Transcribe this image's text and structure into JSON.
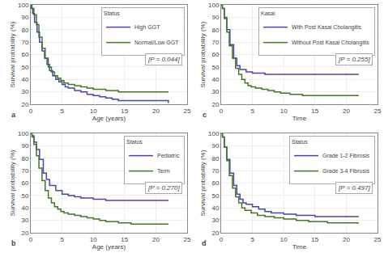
{
  "chart_data": [
    {
      "type": "step",
      "title": "a",
      "xlabel": "Age (years)",
      "ylabel": "Survival probability (%)",
      "legend_title": "Status",
      "legend": "upper right",
      "grid": true,
      "annotations": [
        "[P = 0.044]"
      ],
      "xlim": [
        0,
        25
      ],
      "ylim": [
        20,
        100
      ],
      "xticks": [
        0,
        5,
        10,
        15,
        20,
        25
      ],
      "yticks": [
        20,
        30,
        40,
        50,
        60,
        70,
        80,
        90,
        100
      ],
      "series": [
        {
          "name": "High GGT",
          "color": "#4444bb",
          "x": [
            0,
            0.1,
            0.3,
            0.6,
            1.0,
            1.4,
            1.8,
            2.2,
            2.6,
            3.0,
            3.5,
            4.0,
            4.5,
            5.0,
            5.5,
            6.0,
            7.0,
            8.0,
            9.0,
            10.0,
            11.0,
            12.0,
            13.0,
            14.0,
            22.0
          ],
          "values": [
            100,
            97,
            93,
            86,
            78,
            70,
            63,
            57,
            52,
            47,
            43,
            40,
            38,
            36,
            34,
            33,
            31,
            30,
            28,
            27,
            26,
            25,
            24,
            23,
            21
          ]
        },
        {
          "name": "Normal/Low GGT",
          "color": "#447722",
          "x": [
            0,
            0.2,
            0.5,
            0.9,
            1.3,
            1.8,
            2.3,
            2.8,
            3.3,
            3.8,
            4.3,
            4.8,
            5.3,
            6.0,
            7.0,
            8.0,
            9.0,
            10.0,
            12.0,
            14.0,
            22.0
          ],
          "values": [
            100,
            97,
            92,
            84,
            74,
            65,
            57,
            50,
            46,
            43,
            41,
            39,
            37,
            36,
            35,
            34,
            33,
            32,
            31,
            30,
            30
          ]
        }
      ]
    },
    {
      "type": "step",
      "title": "b",
      "xlabel": "Age (years)",
      "ylabel": "Survival probability (%)",
      "legend_title": "Status",
      "legend": "upper right",
      "grid": true,
      "annotations": [
        "[P = 0.270]"
      ],
      "xlim": [
        0,
        25
      ],
      "ylim": [
        20,
        100
      ],
      "xticks": [
        0,
        5,
        10,
        15,
        20,
        25
      ],
      "yticks": [
        20,
        30,
        40,
        50,
        60,
        70,
        80,
        90,
        100
      ],
      "series": [
        {
          "name": "Pediatric",
          "color": "#4444bb",
          "x": [
            0,
            0.2,
            0.5,
            0.9,
            1.4,
            2.0,
            2.5,
            3.0,
            4.0,
            5.0,
            6.0,
            7.0,
            8.0,
            10.0,
            12.0,
            14.0,
            20.0,
            22.0
          ],
          "values": [
            100,
            98,
            93,
            87,
            79,
            68,
            63,
            58,
            54,
            51,
            50,
            49,
            48,
            47,
            46,
            46,
            46,
            46
          ]
        },
        {
          "name": "Term",
          "color": "#447722",
          "x": [
            0,
            0.2,
            0.5,
            0.9,
            1.3,
            1.8,
            2.3,
            2.8,
            3.3,
            3.8,
            4.3,
            4.8,
            5.3,
            6.0,
            7.0,
            8.0,
            9.0,
            10.0,
            11.0,
            12.0,
            14.0,
            16.0,
            18.0,
            22.0
          ],
          "values": [
            100,
            97,
            91,
            82,
            72,
            62,
            54,
            48,
            44,
            41,
            39,
            37,
            36,
            35,
            34,
            33,
            32,
            31,
            30,
            29,
            28,
            27,
            27,
            27
          ]
        }
      ]
    },
    {
      "type": "step",
      "title": "c",
      "xlabel": "Time",
      "ylabel": "Survival probability (%)",
      "legend_title": "Kasai",
      "legend": "upper right",
      "grid": true,
      "annotations": [
        "[P = 0.255]"
      ],
      "xlim": [
        0,
        25
      ],
      "ylim": [
        20,
        100
      ],
      "xticks": [
        0,
        5,
        10,
        15,
        20,
        25
      ],
      "yticks": [
        20,
        30,
        40,
        50,
        60,
        70,
        80,
        90,
        100
      ],
      "series": [
        {
          "name": "With Post Kasai Cholangitis",
          "color": "#4444bb",
          "x": [
            0,
            0.2,
            0.5,
            0.9,
            1.4,
            2.0,
            2.5,
            3.0,
            4.0,
            5.0,
            7.0,
            9.0,
            12.0,
            15.0,
            22.0
          ],
          "values": [
            100,
            97,
            90,
            80,
            68,
            57,
            51,
            48,
            46,
            45,
            44,
            44,
            44,
            44,
            44
          ]
        },
        {
          "name": "Without Post Kasai Cholangitis",
          "color": "#447722",
          "x": [
            0,
            0.2,
            0.5,
            0.9,
            1.3,
            1.8,
            2.3,
            2.8,
            3.3,
            3.8,
            4.3,
            4.8,
            5.5,
            6.5,
            7.5,
            8.5,
            9.5,
            11.0,
            13.0,
            15.0,
            17.0,
            20.0,
            22.0
          ],
          "values": [
            100,
            97,
            89,
            78,
            67,
            57,
            49,
            44,
            40,
            37,
            35,
            34,
            33,
            32,
            31,
            30,
            29,
            28,
            27,
            27,
            27,
            27,
            27
          ]
        }
      ]
    },
    {
      "type": "step",
      "title": "d",
      "xlabel": "Time",
      "ylabel": "Survival probability (%)",
      "legend_title": "Status",
      "legend": "upper right",
      "grid": true,
      "annotations": [
        "[P = 0.497]"
      ],
      "xlim": [
        0,
        25
      ],
      "ylim": [
        20,
        100
      ],
      "xticks": [
        0,
        5,
        10,
        15,
        20,
        25
      ],
      "yticks": [
        20,
        30,
        40,
        50,
        60,
        70,
        80,
        90,
        100
      ],
      "series": [
        {
          "name": "Grade 1-2 Fibrosis",
          "color": "#4444bb",
          "x": [
            0,
            0.2,
            0.5,
            0.9,
            1.4,
            2.0,
            2.5,
            3.0,
            3.5,
            4.0,
            5.0,
            6.0,
            7.0,
            8.0,
            10.0,
            12.0,
            15.0,
            20.0,
            22.0
          ],
          "values": [
            100,
            97,
            89,
            79,
            68,
            58,
            51,
            47,
            44,
            43,
            41,
            39,
            37,
            36,
            35,
            34,
            33,
            33,
            33
          ]
        },
        {
          "name": "Grade 3-4 Fibrosis",
          "color": "#447722",
          "x": [
            0,
            0.2,
            0.5,
            0.9,
            1.3,
            1.8,
            2.3,
            2.8,
            3.3,
            3.8,
            4.8,
            5.8,
            7.0,
            8.5,
            10.0,
            12.0,
            14.0,
            17.0,
            20.0,
            22.0
          ],
          "values": [
            100,
            97,
            89,
            78,
            66,
            56,
            49,
            44,
            40,
            38,
            36,
            34,
            33,
            32,
            31,
            30,
            29,
            28,
            28,
            28
          ]
        }
      ]
    }
  ]
}
